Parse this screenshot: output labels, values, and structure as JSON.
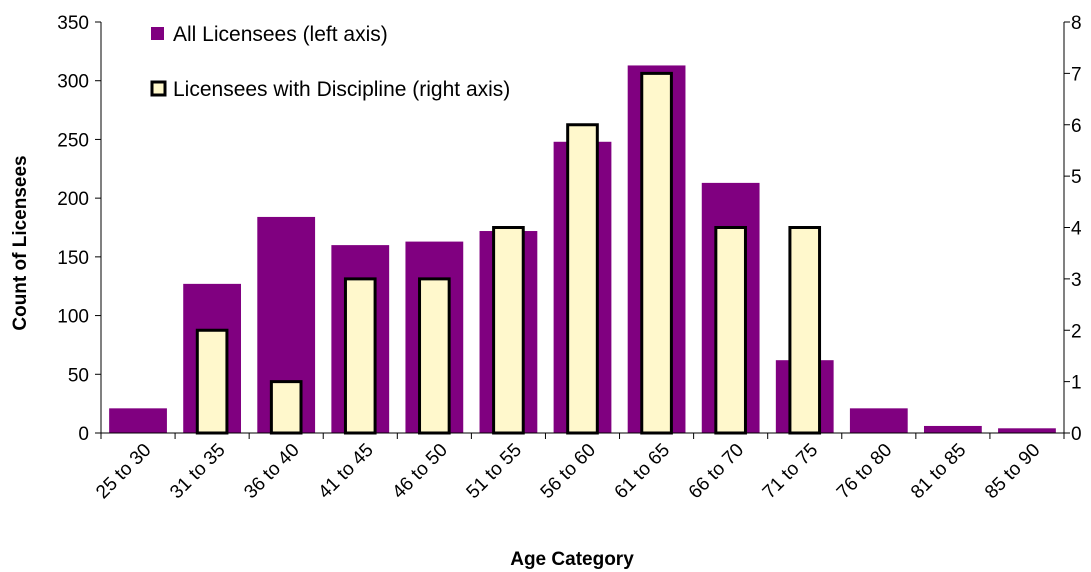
{
  "chart_data": {
    "type": "bar",
    "title": "",
    "xlabel": "Age Category",
    "ylabel": "Count of Licensees",
    "y2label": "",
    "categories": [
      "25 to 30",
      "31 to 35",
      "36 to 40",
      "41 to 45",
      "46 to 50",
      "51 to 55",
      "56 to 60",
      "61 to 65",
      "66 to 70",
      "71 to 75",
      "76 to 80",
      "81 to 85",
      "85 to 90"
    ],
    "ylim": [
      0,
      350
    ],
    "y_ticks": [
      0,
      50,
      100,
      150,
      200,
      250,
      300,
      350
    ],
    "y2lim": [
      0,
      8
    ],
    "y2_ticks": [
      0,
      1,
      2,
      3,
      4,
      5,
      6,
      7,
      8
    ],
    "grid": false,
    "legend_position": "top-left",
    "series": [
      {
        "name": "All Licensees (left axis)",
        "axis": "left",
        "color": "#800080",
        "values": [
          21,
          127,
          184,
          160,
          163,
          172,
          248,
          313,
          213,
          62,
          21,
          6,
          4
        ]
      },
      {
        "name": "Licensees with Discipline (right axis)",
        "axis": "right",
        "color": "#FFF8CC",
        "stroke": "#000000",
        "values": [
          0,
          2,
          1,
          3,
          3,
          4,
          6,
          7,
          4,
          4,
          0,
          0,
          0
        ]
      }
    ]
  }
}
